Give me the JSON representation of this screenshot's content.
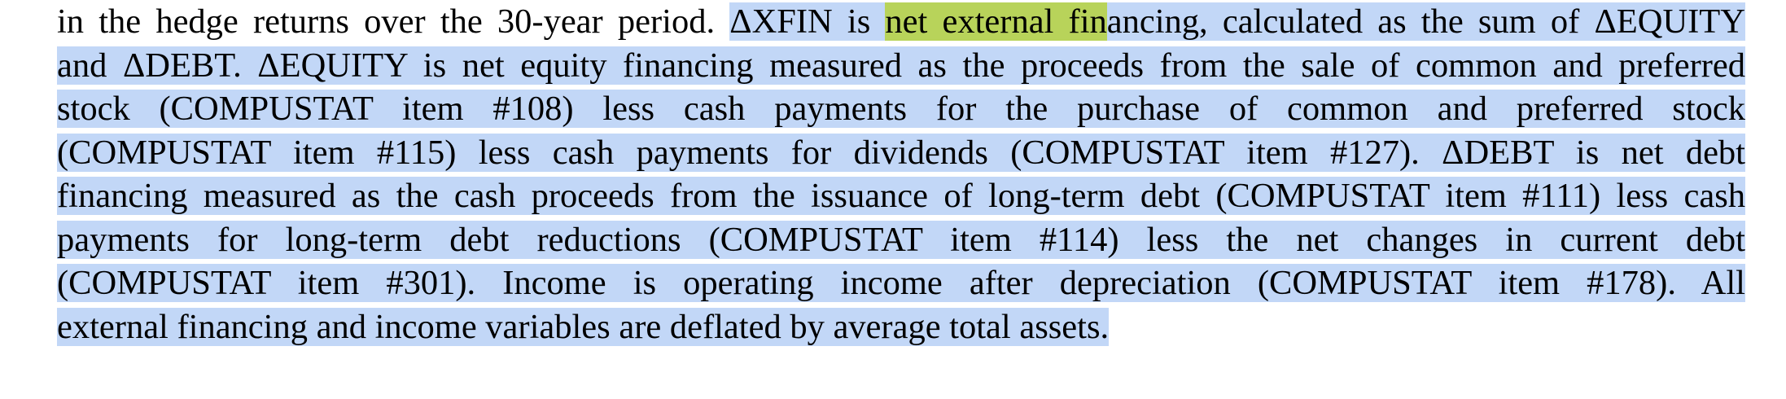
{
  "document": {
    "selection_color": "#c2d7f7",
    "highlight_color": "#b8d35a",
    "lines": [
      {
        "pre": "in the hedge returns over the 30-year period. ",
        "sel_a": "ΔXFIN is ",
        "highlight": "net external fin",
        "sel_b": "ancing, calculated as the sum of ΔEQUITY"
      },
      {
        "text": "and ΔDEBT. ΔEQUITY is net equity financing measured as the proceeds from the sale of common and preferred"
      },
      {
        "text": "stock (COMPUSTAT item #108) less cash payments for the purchase of common and preferred stock"
      },
      {
        "text": "(COMPUSTAT item #115) less cash payments for dividends (COMPUSTAT item #127). ΔDEBT is net debt"
      },
      {
        "text": "financing measured as the cash proceeds from the issuance of long-term debt (COMPUSTAT item #111) less cash"
      },
      {
        "text": "payments for long-term debt reductions (COMPUSTAT item #114) less the net changes in current debt"
      },
      {
        "text": "(COMPUSTAT item #301). Income is operating income after depreciation (COMPUSTAT item #178). All"
      },
      {
        "text": "external financing and income variables are deflated by average total assets."
      }
    ]
  }
}
